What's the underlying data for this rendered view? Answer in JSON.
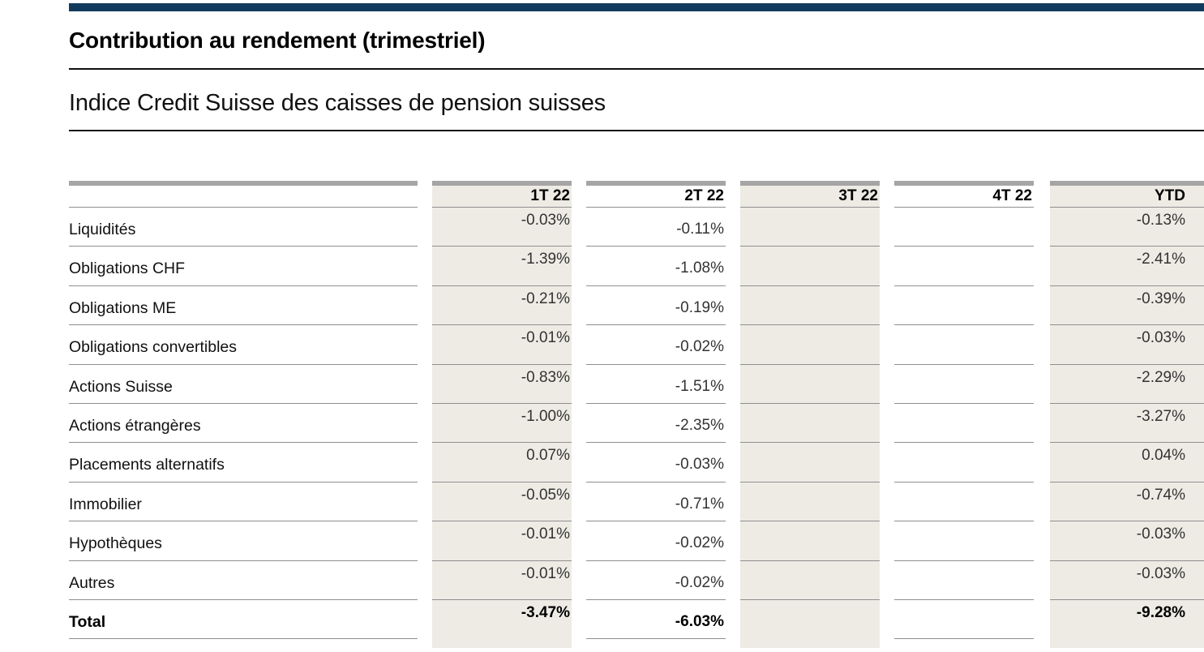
{
  "header": {
    "title": "Contribution au rendement (trimestriel)",
    "subtitle": "Indice Credit Suisse des caisses de pension suisses"
  },
  "colors": {
    "accent_bar": "#113A5C",
    "highlight_column_bg": "#EEEBE5",
    "column_top_bar": "#A5A5A5",
    "row_separator": "#8F8F8F"
  },
  "table": {
    "columns": [
      {
        "label": "1T 22",
        "highlighted": true
      },
      {
        "label": "2T 22",
        "highlighted": false
      },
      {
        "label": "3T 22",
        "highlighted": true
      },
      {
        "label": "4T 22",
        "highlighted": false
      },
      {
        "label": "YTD",
        "highlighted": true
      }
    ],
    "rows": [
      {
        "label": "Liquidités",
        "values": [
          "-0.03%",
          "-0.11%",
          "",
          "",
          "-0.13%"
        ],
        "is_total": false
      },
      {
        "label": "Obligations CHF",
        "values": [
          "-1.39%",
          "-1.08%",
          "",
          "",
          "-2.41%"
        ],
        "is_total": false
      },
      {
        "label": "Obligations ME",
        "values": [
          "-0.21%",
          "-0.19%",
          "",
          "",
          "-0.39%"
        ],
        "is_total": false
      },
      {
        "label": "Obligations convertibles",
        "values": [
          "-0.01%",
          "-0.02%",
          "",
          "",
          "-0.03%"
        ],
        "is_total": false
      },
      {
        "label": "Actions Suisse",
        "values": [
          "-0.83%",
          "-1.51%",
          "",
          "",
          "-2.29%"
        ],
        "is_total": false
      },
      {
        "label": "Actions étrangères",
        "values": [
          "-1.00%",
          "-2.35%",
          "",
          "",
          "-3.27%"
        ],
        "is_total": false
      },
      {
        "label": "Placements alternatifs",
        "values": [
          "0.07%",
          "-0.03%",
          "",
          "",
          "0.04%"
        ],
        "is_total": false
      },
      {
        "label": "Immobilier",
        "values": [
          "-0.05%",
          "-0.71%",
          "",
          "",
          "-0.74%"
        ],
        "is_total": false
      },
      {
        "label": "Hypothèques",
        "values": [
          "-0.01%",
          "-0.02%",
          "",
          "",
          "-0.03%"
        ],
        "is_total": false
      },
      {
        "label": "Autres",
        "values": [
          "-0.01%",
          "-0.02%",
          "",
          "",
          "-0.03%"
        ],
        "is_total": false
      },
      {
        "label": "Total",
        "values": [
          "-3.47%",
          "-6.03%",
          "",
          "",
          "-9.28%"
        ],
        "is_total": true
      }
    ]
  }
}
